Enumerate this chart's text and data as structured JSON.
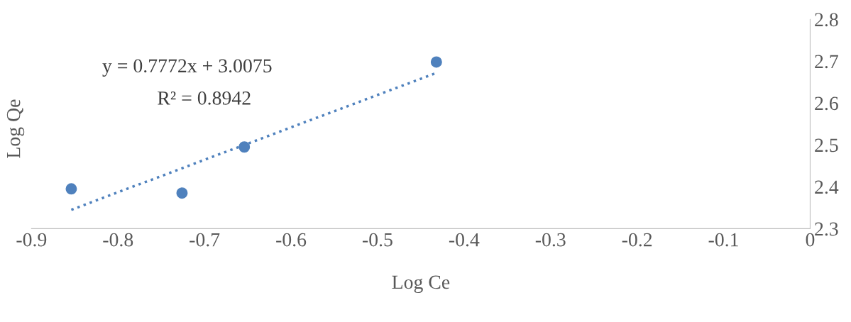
{
  "chart_data": {
    "type": "scatter",
    "xlabel": "Log Ce",
    "ylabel": "Log Qe",
    "annotations": [
      "y = 0.7772x + 3.0075",
      "R² = 0.8942"
    ],
    "xlim": [
      -0.9,
      0
    ],
    "xticks": [
      -0.9,
      -0.8,
      -0.7,
      -0.6,
      -0.5,
      -0.4,
      -0.3,
      -0.2,
      -0.1,
      0
    ],
    "ylim": [
      2.3,
      2.8
    ],
    "yticks": [
      2.3,
      2.4,
      2.5,
      2.6,
      2.7,
      2.8
    ],
    "grid": false,
    "legend": false,
    "marker": "circle",
    "series": [
      {
        "color": "#4f81bd",
        "x": [
          -0.854,
          -0.726,
          -0.654,
          -0.432
        ],
        "values": [
          2.395,
          2.385,
          2.495,
          2.698
        ]
      },
      {
        "type": "line",
        "color": "#4f81bd",
        "x": [
          -0.854,
          -0.432
        ],
        "values": [
          2.345,
          2.672
        ],
        "line_style": "dotted",
        "marker": "none"
      }
    ]
  }
}
